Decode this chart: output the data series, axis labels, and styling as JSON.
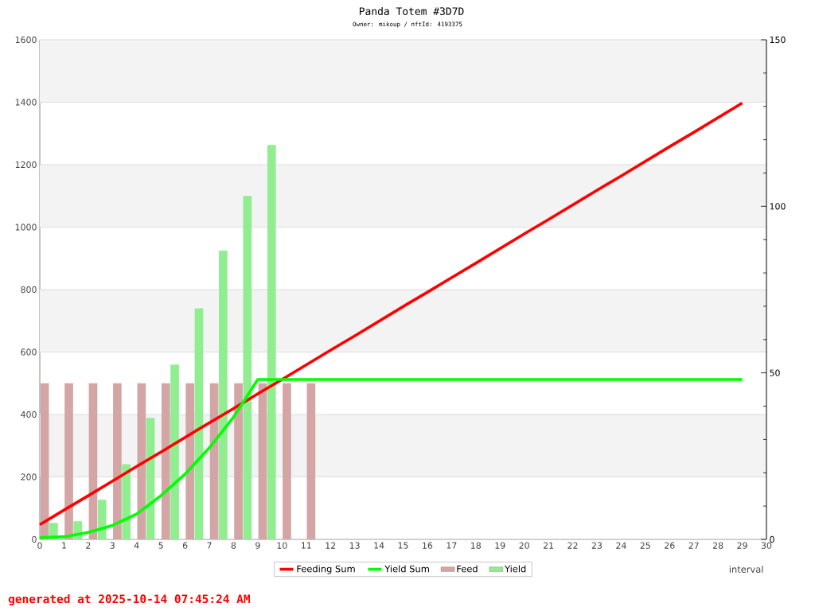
{
  "chart_data": {
    "type": "bar",
    "title": "Panda Totem #3D7D",
    "subtitle": "Owner: mikoup / nftId: 4193375",
    "xlabel": "interval",
    "annotations": [
      "generated at 2025-10-14 07:45:24 AM"
    ],
    "series": [
      {
        "name": "Feeding Sum",
        "type": "line",
        "axis": "y2",
        "color": "#ff0000",
        "x": [
          0,
          1,
          2,
          3,
          4,
          5,
          6,
          7,
          8,
          9,
          10,
          11,
          12,
          13,
          14,
          15,
          16,
          17,
          18,
          19,
          20,
          21,
          22,
          23,
          24,
          25,
          26,
          27,
          28,
          29
        ],
        "values": [
          4.4,
          8.8,
          13.1,
          17.5,
          21.9,
          26.2,
          30.6,
          35.0,
          39.3,
          43.7,
          48.0,
          52.4,
          56.8,
          61.1,
          65.5,
          69.9,
          74.2,
          78.6,
          82.9,
          87.3,
          91.7,
          96.0,
          100.4,
          104.8,
          109.1,
          113.5,
          117.9,
          122.2,
          126.6,
          131.0
        ]
      },
      {
        "name": "Yield Sum",
        "type": "line",
        "axis": "y2",
        "color": "#00ff00",
        "x": [
          0,
          1,
          2,
          3,
          4,
          5,
          6,
          7,
          8,
          9,
          10,
          11,
          12,
          13,
          14,
          15,
          16,
          17,
          18,
          19,
          20,
          21,
          22,
          23,
          24,
          25,
          26,
          27,
          28,
          29
        ],
        "values": [
          0.5,
          0.8,
          2.1,
          4.2,
          7.6,
          13.1,
          19.6,
          27.5,
          36.7,
          48,
          48,
          48,
          48,
          48,
          48,
          48,
          48,
          48,
          48,
          48,
          48,
          48,
          48,
          48,
          48,
          48,
          48,
          48,
          48,
          48
        ]
      },
      {
        "name": "Feed",
        "color": "#d4a5a5",
        "x": [
          0.2,
          1.2,
          2.2,
          3.2,
          4.2,
          5.2,
          6.2,
          7.2,
          8.2,
          9.2,
          10.2,
          11.2
        ],
        "values": [
          500,
          500,
          500,
          500,
          500,
          500,
          500,
          500,
          500,
          500,
          500,
          500
        ]
      },
      {
        "name": "Yield",
        "color": "#90ee90",
        "x": [
          0.57,
          1.57,
          2.57,
          3.57,
          4.57,
          5.57,
          6.57,
          7.57,
          8.57,
          9.57
        ],
        "values": [
          53,
          58,
          127,
          241,
          389,
          560,
          740,
          925,
          1100,
          1263
        ]
      }
    ],
    "xlim": [
      0,
      30
    ],
    "xticks": [
      0,
      1,
      2,
      3,
      4,
      5,
      6,
      7,
      8,
      9,
      10,
      11,
      12,
      13,
      14,
      15,
      16,
      17,
      18,
      19,
      20,
      21,
      22,
      23,
      24,
      25,
      26,
      27,
      28,
      29,
      30
    ],
    "ylim": [
      0,
      1600
    ],
    "yticks": [
      0,
      200,
      400,
      600,
      800,
      1000,
      1200,
      1400,
      1600
    ],
    "y2lim": [
      0,
      150
    ],
    "y2ticks": [
      0,
      {
        "value": 10,
        "label": null
      },
      {
        "value": 20,
        "label": null
      },
      {
        "value": 30,
        "label": null
      },
      {
        "value": 40,
        "label": null
      },
      50,
      {
        "value": 60,
        "label": null
      },
      {
        "value": 70,
        "label": null
      },
      {
        "value": 80,
        "label": null
      },
      {
        "value": 90,
        "label": null
      },
      100,
      {
        "value": 110,
        "label": null
      },
      {
        "value": 120,
        "label": null
      },
      {
        "value": 130,
        "label": null
      },
      {
        "value": 140,
        "label": null
      },
      150
    ],
    "bands": [
      {
        "axis": "y",
        "from": 200,
        "to": 400,
        "color": "#f3f3f3"
      },
      {
        "axis": "y",
        "from": 600,
        "to": 800,
        "color": "#f3f3f3"
      },
      {
        "axis": "y",
        "from": 1000,
        "to": 1200,
        "color": "#f3f3f3"
      },
      {
        "axis": "y",
        "from": 1400,
        "to": 1600,
        "color": "#f3f3f3"
      }
    ],
    "grid": "y",
    "legend": "bottom"
  }
}
